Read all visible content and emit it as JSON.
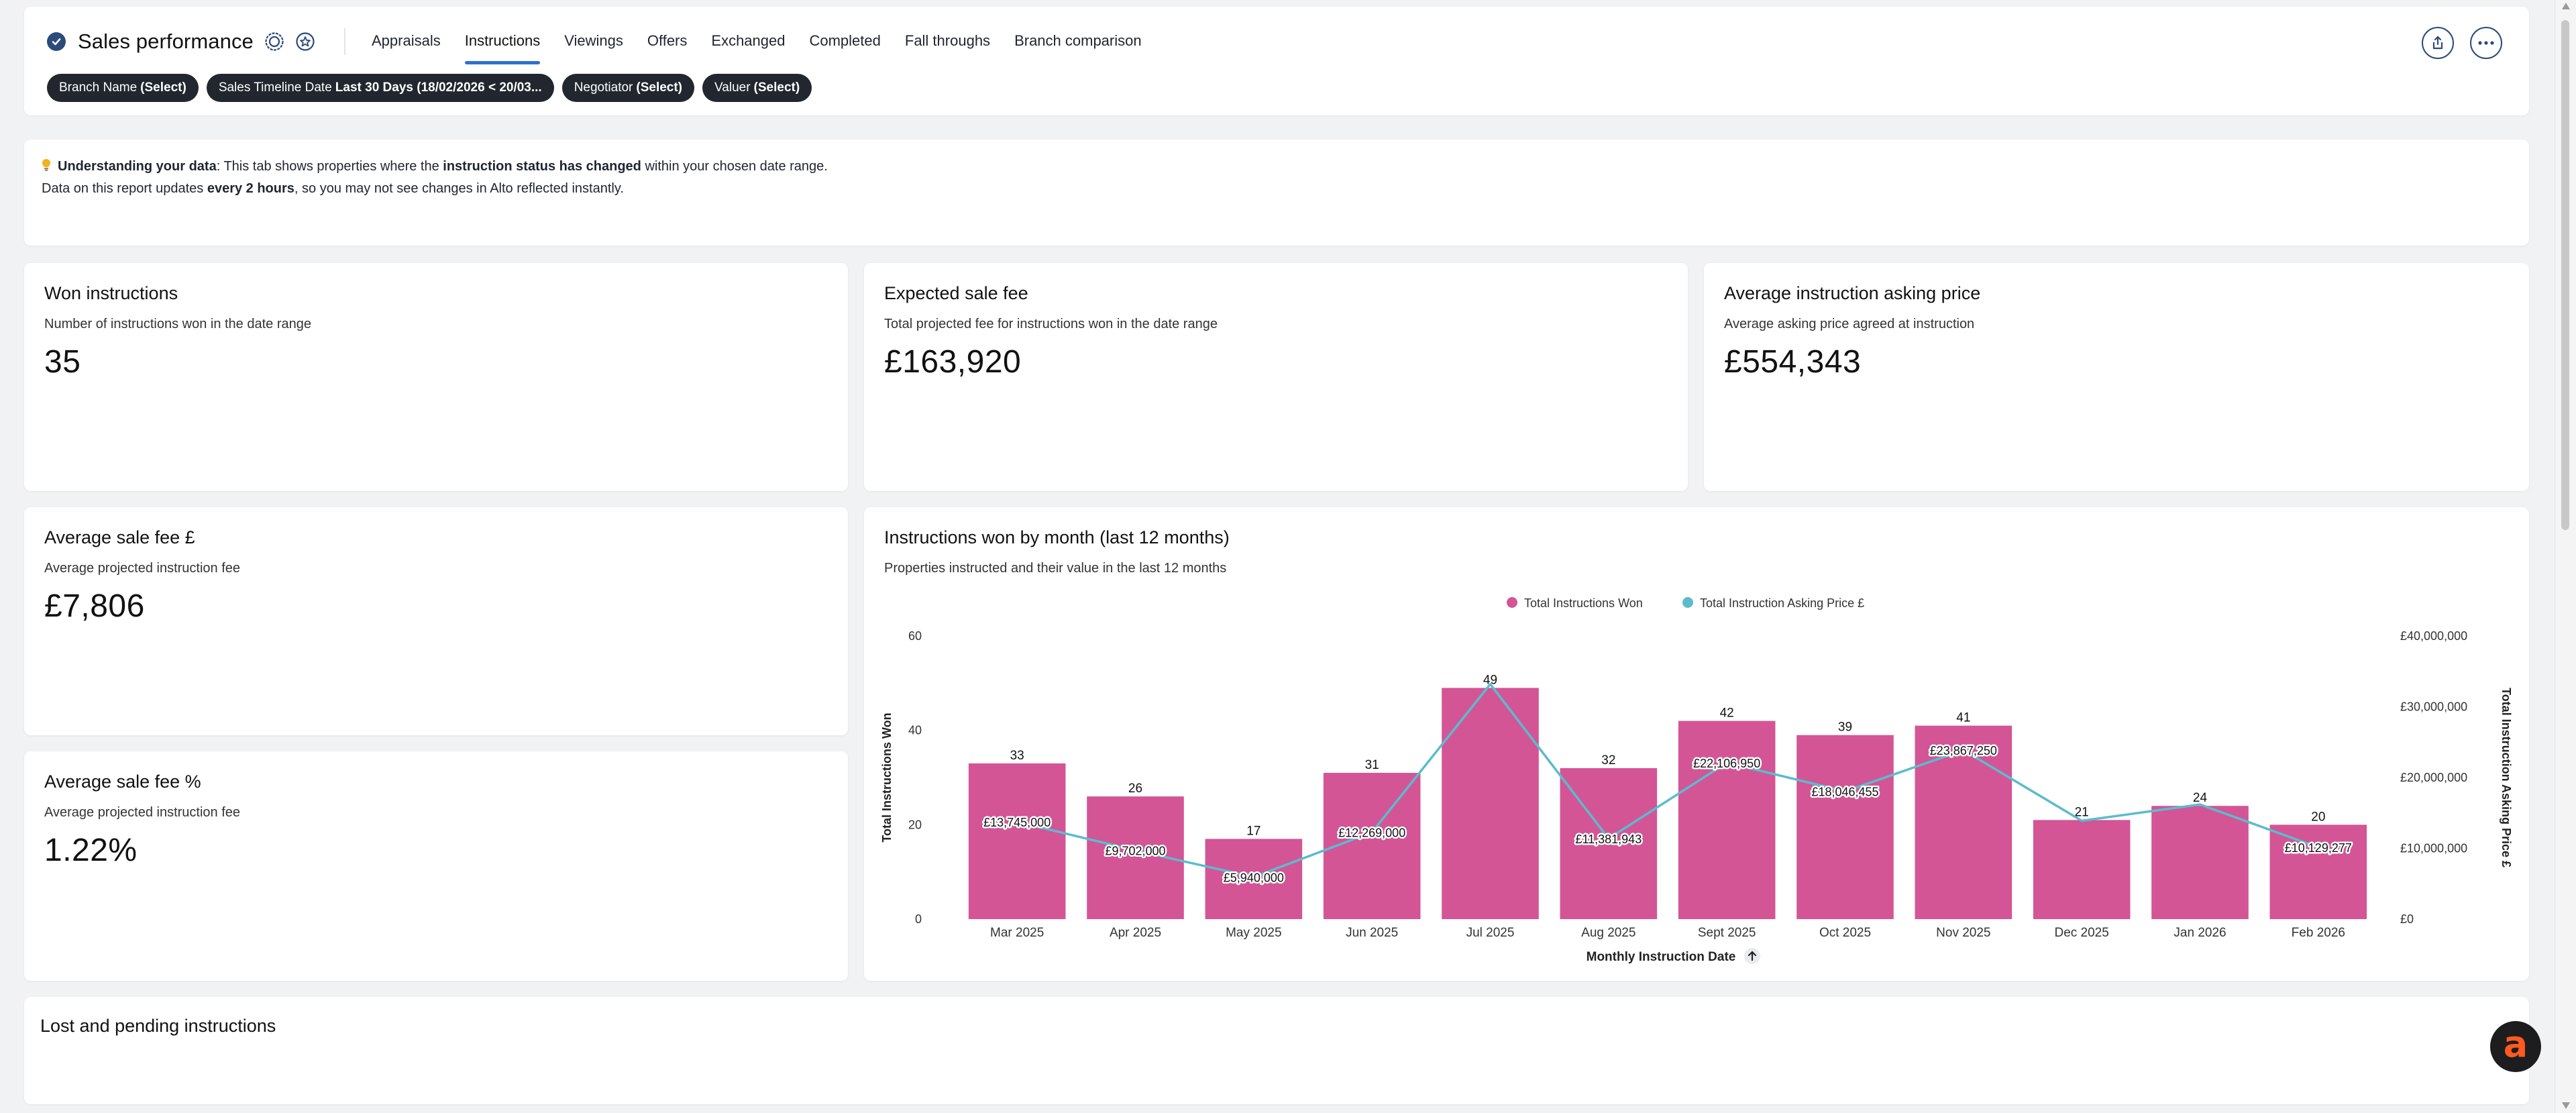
{
  "header": {
    "title": "Sales performance",
    "tabs": [
      {
        "label": "Appraisals"
      },
      {
        "label": "Instructions",
        "active": true
      },
      {
        "label": "Viewings"
      },
      {
        "label": "Offers"
      },
      {
        "label": "Exchanged"
      },
      {
        "label": "Completed"
      },
      {
        "label": "Fall throughs"
      },
      {
        "label": "Branch comparison"
      }
    ],
    "filters": [
      {
        "label": "Branch Name",
        "value": "(Select)"
      },
      {
        "label": "Sales Timeline Date",
        "value": "Last 30 Days (18/02/2026 < 20/03..."
      },
      {
        "label": "Negotiator",
        "value": "(Select)"
      },
      {
        "label": "Valuer",
        "value": "(Select)"
      }
    ]
  },
  "info": {
    "icon": "lightbulb-icon",
    "line1_bold1": "Understanding your data",
    "line1_text1": ": This tab shows properties where the ",
    "line1_bold2": "instruction status has changed",
    "line1_text2": " within your chosen date range.",
    "line2_text1": "Data on this report updates ",
    "line2_bold": "every 2 hours",
    "line2_text2": ", so you may not see changes in Alto reflected instantly."
  },
  "kpis": {
    "won": {
      "title": "Won instructions",
      "subtitle": "Number of instructions won in the date range",
      "value": "35"
    },
    "fee": {
      "title": "Expected sale fee",
      "subtitle": "Total projected fee for instructions won in the date range",
      "value": "£163,920"
    },
    "asking": {
      "title": "Average instruction asking price",
      "subtitle": "Average asking price agreed at instruction",
      "value": "£554,343"
    },
    "avg_fee": {
      "title": "Average sale fee £",
      "subtitle": "Average projected instruction fee",
      "value": "£7,806"
    },
    "avg_fee_pct": {
      "title": "Average sale fee %",
      "subtitle": "Average projected instruction fee",
      "value": "1.22%"
    }
  },
  "chart": {
    "title": "Instructions won by month (last 12 months)",
    "subtitle": "Properties instructed and their value in the last 12 months"
  },
  "chart_data": {
    "type": "bar",
    "categories": [
      "Mar 2025",
      "Apr 2025",
      "May 2025",
      "Jun 2025",
      "Jul 2025",
      "Aug 2025",
      "Sept 2025",
      "Oct 2025",
      "Nov 2025",
      "Dec 2025",
      "Jan 2026",
      "Feb 2026"
    ],
    "series": [
      {
        "name": "Total Instructions Won",
        "type": "bar",
        "axis": "left",
        "color": "#d35596",
        "values": [
          33,
          26,
          17,
          31,
          49,
          32,
          42,
          39,
          41,
          21,
          24,
          20
        ]
      },
      {
        "name": "Total Instruction Asking Price £",
        "type": "line",
        "axis": "right",
        "color": "#5bbccc",
        "values": [
          13745000,
          9702000,
          5940000,
          12269000,
          33200000,
          11381943,
          22106950,
          18046455,
          23867250,
          13900000,
          16200000,
          10129277
        ],
        "labels": [
          "£13,745,000",
          "£9,702,000",
          "£5,940,000",
          "£12,269,000",
          "",
          "£11,381,943",
          "£22,106,950",
          "£18,046,455",
          "£23,867,250",
          "",
          "",
          "£10,129,277"
        ]
      }
    ],
    "xlabel": "Monthly Instruction Date",
    "ylabel": "Total Instructions Won",
    "y2label": "Total Instruction Asking Price £",
    "ylim": [
      0,
      60
    ],
    "yticks": [
      "0",
      "20",
      "40",
      "60"
    ],
    "y2lim": [
      0,
      40000000
    ],
    "y2ticks": [
      "£0",
      "£10,000,000",
      "£20,000,000",
      "£30,000,000",
      "£40,000,000"
    ],
    "legend": "top-center",
    "grid": false
  },
  "lost": {
    "title": "Lost and pending instructions"
  },
  "colors": {
    "accent": "#2f6fd1",
    "bar": "#d35596",
    "line": "#5bbccc",
    "chip": "#22262e"
  }
}
